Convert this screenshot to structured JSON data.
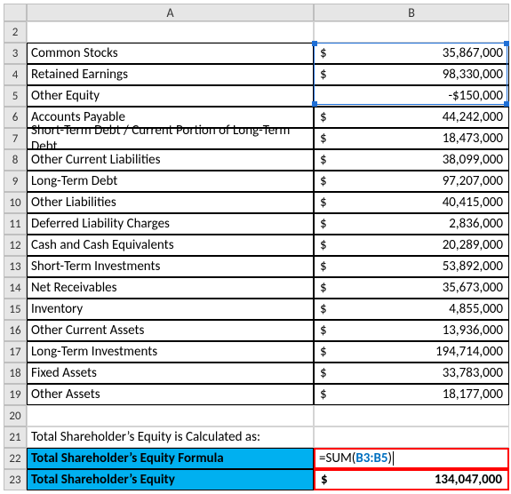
{
  "colHeaders": {
    "A": "A",
    "B": "B"
  },
  "currencySymbol": "$",
  "rows": [
    {
      "n": 2,
      "type": "blank"
    },
    {
      "n": 3,
      "type": "boxed",
      "label": "Common Stocks",
      "sym": "$",
      "val": "35,867,000"
    },
    {
      "n": 4,
      "type": "boxed",
      "label": "Retained Earnings",
      "sym": "$",
      "val": "98,330,000"
    },
    {
      "n": 5,
      "type": "boxed-neg",
      "label": "Other Equity",
      "val": "-$150,000"
    },
    {
      "n": 6,
      "type": "boxed",
      "label": "Accounts Payable",
      "sym": "$",
      "val": "44,242,000"
    },
    {
      "n": 7,
      "type": "boxed",
      "label": "Short-Term Debt / Current Portion of Long-Term Debt",
      "sym": "$",
      "val": "18,473,000"
    },
    {
      "n": 8,
      "type": "boxed",
      "label": "Other Current Liabilities",
      "sym": "$",
      "val": "38,099,000"
    },
    {
      "n": 9,
      "type": "boxed",
      "label": "Long-Term Debt",
      "sym": "$",
      "val": "97,207,000"
    },
    {
      "n": 10,
      "type": "boxed",
      "label": "Other Liabilities",
      "sym": "$",
      "val": "40,415,000"
    },
    {
      "n": 11,
      "type": "boxed",
      "label": "Deferred Liability Charges",
      "sym": "$",
      "val": "2,836,000"
    },
    {
      "n": 12,
      "type": "boxed",
      "label": "Cash and Cash Equivalents",
      "sym": "$",
      "val": "20,289,000"
    },
    {
      "n": 13,
      "type": "boxed",
      "label": "Short-Term Investments",
      "sym": "$",
      "val": "53,892,000"
    },
    {
      "n": 14,
      "type": "boxed",
      "label": "Net Receivables",
      "sym": "$",
      "val": "35,673,000"
    },
    {
      "n": 15,
      "type": "boxed",
      "label": "Inventory",
      "sym": "$",
      "val": "4,855,000"
    },
    {
      "n": 16,
      "type": "boxed",
      "label": "Other Current Assets",
      "sym": "$",
      "val": "13,936,000"
    },
    {
      "n": 17,
      "type": "boxed",
      "label": "Long-Term Investments",
      "sym": "$",
      "val": "194,714,000"
    },
    {
      "n": 18,
      "type": "boxed",
      "label": "Fixed Assets",
      "sym": "$",
      "val": "33,783,000"
    },
    {
      "n": 19,
      "type": "boxed",
      "label": "Other Assets",
      "sym": "$",
      "val": "18,177,000"
    },
    {
      "n": 20,
      "type": "blank"
    },
    {
      "n": 21,
      "type": "caption",
      "label": "Total Shareholder’s Equity is Calculated as:"
    },
    {
      "n": 22,
      "type": "hl-formula",
      "label": "Total Shareholder’s Equity Formula",
      "formulaPrefix": "=SUM(",
      "formulaRef": "B3:B5",
      "formulaSuffix": ")"
    },
    {
      "n": 23,
      "type": "hl-result",
      "label": "Total Shareholder’s Equity",
      "sym": "$",
      "val": "134,047,000"
    }
  ],
  "selection": {
    "firstRow": 3,
    "lastRow": 5,
    "col": "B"
  },
  "styles": {
    "highlightBg": "#00b0f0",
    "redBox": "#ff0000",
    "selColor": "#1f6fd6",
    "gridColor": "#d4d4d4",
    "headerBg": "#e6e6e6",
    "font": "Calibri",
    "fontSize": 15
  }
}
